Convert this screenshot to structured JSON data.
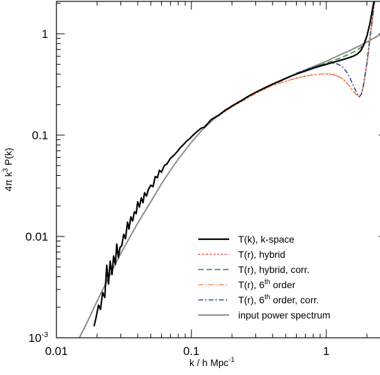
{
  "chart_data": {
    "type": "line",
    "xlabel": "k / h Mpc",
    "xlabel_sup": "-1",
    "ylabel": "4π k",
    "ylabel_sup": "3",
    "ylabel_tail": " P(k)",
    "xscale": "log",
    "yscale": "log",
    "xlim": [
      0.01,
      2.5
    ],
    "ylim": [
      0.001,
      2.3
    ],
    "grid": false,
    "legend_position": "bottom-right",
    "x_ticks": [
      {
        "value": 0.01,
        "label": "0.01"
      },
      {
        "value": 0.1,
        "label": "0.1"
      },
      {
        "value": 1,
        "label": "1"
      }
    ],
    "y_ticks": [
      {
        "value": 0.001,
        "label": "10",
        "sup": "-3"
      },
      {
        "value": 0.01,
        "label": "0.01"
      },
      {
        "value": 0.1,
        "label": "0.1"
      },
      {
        "value": 1,
        "label": "1"
      }
    ],
    "series": [
      {
        "name": "T(k), k-space",
        "color": "#000000",
        "dash": "",
        "width": 2.2,
        "points": [
          [
            0.019,
            0.0013
          ],
          [
            0.0197,
            0.0016
          ],
          [
            0.0205,
            0.0021
          ],
          [
            0.0212,
            0.0019
          ],
          [
            0.022,
            0.0028
          ],
          [
            0.0228,
            0.0025
          ],
          [
            0.0236,
            0.0052
          ],
          [
            0.0243,
            0.0034
          ],
          [
            0.025,
            0.0057
          ],
          [
            0.0258,
            0.0042
          ],
          [
            0.0265,
            0.0064
          ],
          [
            0.0273,
            0.0053
          ],
          [
            0.028,
            0.0084
          ],
          [
            0.0288,
            0.0062
          ],
          [
            0.0296,
            0.0078
          ],
          [
            0.0305,
            0.0081
          ],
          [
            0.0315,
            0.0105
          ],
          [
            0.0325,
            0.0095
          ],
          [
            0.0336,
            0.0138
          ],
          [
            0.0345,
            0.0118
          ],
          [
            0.0356,
            0.0156
          ],
          [
            0.0367,
            0.0142
          ],
          [
            0.0378,
            0.0175
          ],
          [
            0.039,
            0.0168
          ],
          [
            0.04,
            0.022
          ],
          [
            0.0412,
            0.0195
          ],
          [
            0.0425,
            0.024
          ],
          [
            0.0438,
            0.0215
          ],
          [
            0.045,
            0.027
          ],
          [
            0.0465,
            0.025
          ],
          [
            0.048,
            0.029
          ],
          [
            0.05,
            0.032
          ],
          [
            0.052,
            0.031
          ],
          [
            0.054,
            0.039
          ],
          [
            0.056,
            0.038
          ],
          [
            0.058,
            0.045
          ],
          [
            0.06,
            0.043
          ],
          [
            0.063,
            0.05
          ],
          [
            0.066,
            0.052
          ],
          [
            0.07,
            0.059
          ],
          [
            0.074,
            0.063
          ],
          [
            0.078,
            0.068
          ],
          [
            0.082,
            0.074
          ],
          [
            0.087,
            0.08
          ],
          [
            0.092,
            0.087
          ],
          [
            0.097,
            0.092
          ],
          [
            0.103,
            0.1
          ],
          [
            0.11,
            0.108
          ],
          [
            0.118,
            0.117
          ],
          [
            0.125,
            0.12
          ],
          [
            0.132,
            0.13
          ],
          [
            0.14,
            0.142
          ],
          [
            0.15,
            0.15
          ],
          [
            0.16,
            0.158
          ],
          [
            0.17,
            0.168
          ],
          [
            0.18,
            0.178
          ],
          [
            0.19,
            0.185
          ],
          [
            0.2,
            0.194
          ],
          [
            0.22,
            0.208
          ],
          [
            0.24,
            0.222
          ],
          [
            0.26,
            0.238
          ],
          [
            0.28,
            0.252
          ],
          [
            0.3,
            0.265
          ],
          [
            0.33,
            0.282
          ],
          [
            0.36,
            0.298
          ],
          [
            0.4,
            0.318
          ],
          [
            0.45,
            0.34
          ],
          [
            0.5,
            0.362
          ],
          [
            0.55,
            0.382
          ],
          [
            0.6,
            0.4
          ],
          [
            0.7,
            0.43
          ],
          [
            0.8,
            0.458
          ],
          [
            0.9,
            0.48
          ],
          [
            1.0,
            0.5
          ],
          [
            1.1,
            0.518
          ],
          [
            1.2,
            0.535
          ],
          [
            1.3,
            0.552
          ],
          [
            1.4,
            0.568
          ],
          [
            1.5,
            0.585
          ],
          [
            1.6,
            0.605
          ],
          [
            1.7,
            0.632
          ],
          [
            1.8,
            0.68
          ],
          [
            1.9,
            0.78
          ],
          [
            2.0,
            0.95
          ],
          [
            2.1,
            1.25
          ],
          [
            2.2,
            1.75
          ],
          [
            2.3,
            2.4
          ]
        ]
      },
      {
        "name": "T(r), hybrid",
        "color": "#e8504c",
        "dash": "3,2.5",
        "width": 1.6,
        "points": [
          [
            0.15,
            0.146
          ],
          [
            0.2,
            0.19
          ],
          [
            0.25,
            0.225
          ],
          [
            0.3,
            0.258
          ],
          [
            0.35,
            0.285
          ],
          [
            0.4,
            0.31
          ],
          [
            0.5,
            0.34
          ],
          [
            0.6,
            0.365
          ],
          [
            0.7,
            0.382
          ],
          [
            0.8,
            0.394
          ],
          [
            0.9,
            0.4
          ],
          [
            1.0,
            0.402
          ],
          [
            1.1,
            0.398
          ],
          [
            1.2,
            0.385
          ],
          [
            1.3,
            0.364
          ],
          [
            1.4,
            0.335
          ],
          [
            1.5,
            0.3
          ],
          [
            1.6,
            0.268
          ],
          [
            1.7,
            0.245
          ],
          [
            1.76,
            0.238
          ],
          [
            1.82,
            0.252
          ],
          [
            1.9,
            0.32
          ],
          [
            2.0,
            0.5
          ],
          [
            2.1,
            0.85
          ],
          [
            2.2,
            1.4
          ],
          [
            2.3,
            2.3
          ]
        ]
      },
      {
        "name": "T(r), hybrid, corr.",
        "color": "#2a8a2a",
        "dash": "8,4",
        "width": 1.6,
        "points": [
          [
            0.6,
            0.405
          ],
          [
            0.7,
            0.435
          ],
          [
            0.8,
            0.465
          ],
          [
            0.9,
            0.49
          ],
          [
            1.0,
            0.515
          ],
          [
            1.1,
            0.537
          ],
          [
            1.2,
            0.56
          ],
          [
            1.3,
            0.585
          ],
          [
            1.4,
            0.61
          ],
          [
            1.5,
            0.638
          ],
          [
            1.6,
            0.662
          ],
          [
            1.7,
            0.695
          ],
          [
            1.8,
            0.73
          ],
          [
            1.9,
            0.8
          ],
          [
            2.0,
            0.96
          ],
          [
            2.1,
            1.25
          ],
          [
            2.2,
            1.75
          ],
          [
            2.3,
            2.4
          ]
        ]
      },
      {
        "name": "T(r), 6",
        "name_sup": "th",
        "name_tail": " order",
        "color": "#f08a4b",
        "dash": "7,3,2,3",
        "width": 1.6,
        "points": [
          [
            0.15,
            0.148
          ],
          [
            0.2,
            0.19
          ],
          [
            0.25,
            0.226
          ],
          [
            0.3,
            0.258
          ],
          [
            0.35,
            0.286
          ],
          [
            0.4,
            0.31
          ],
          [
            0.5,
            0.341
          ],
          [
            0.6,
            0.365
          ],
          [
            0.7,
            0.382
          ],
          [
            0.8,
            0.394
          ],
          [
            0.9,
            0.4
          ],
          [
            1.0,
            0.402
          ],
          [
            1.1,
            0.398
          ],
          [
            1.2,
            0.385
          ],
          [
            1.3,
            0.364
          ],
          [
            1.4,
            0.335
          ],
          [
            1.5,
            0.3
          ],
          [
            1.6,
            0.268
          ],
          [
            1.7,
            0.245
          ],
          [
            1.76,
            0.238
          ],
          [
            1.82,
            0.252
          ],
          [
            1.9,
            0.32
          ],
          [
            2.0,
            0.5
          ],
          [
            2.1,
            0.85
          ],
          [
            2.2,
            1.4
          ],
          [
            2.3,
            2.3
          ]
        ]
      },
      {
        "name": "T(r), 6",
        "name_sup": "th",
        "name_tail": " order, corr.",
        "color": "#2c4a8c",
        "dash": "7,3,2,3",
        "width": 1.6,
        "points": [
          [
            0.6,
            0.408
          ],
          [
            0.7,
            0.44
          ],
          [
            0.8,
            0.468
          ],
          [
            0.9,
            0.49
          ],
          [
            1.0,
            0.505
          ],
          [
            1.1,
            0.512
          ],
          [
            1.2,
            0.505
          ],
          [
            1.3,
            0.48
          ],
          [
            1.4,
            0.43
          ],
          [
            1.5,
            0.365
          ],
          [
            1.6,
            0.3
          ],
          [
            1.7,
            0.255
          ],
          [
            1.76,
            0.24
          ],
          [
            1.82,
            0.255
          ],
          [
            1.9,
            0.33
          ],
          [
            2.0,
            0.52
          ],
          [
            2.1,
            0.9
          ],
          [
            2.2,
            1.45
          ],
          [
            2.3,
            2.3
          ]
        ]
      },
      {
        "name": "input power spectrum",
        "color": "#8c8c8c",
        "dash": "",
        "width": 2.0,
        "points": [
          [
            0.0145,
            0.00095
          ],
          [
            0.017,
            0.00145
          ],
          [
            0.02,
            0.0023
          ],
          [
            0.025,
            0.0042
          ],
          [
            0.03,
            0.0068
          ],
          [
            0.04,
            0.0135
          ],
          [
            0.05,
            0.022
          ],
          [
            0.06,
            0.033
          ],
          [
            0.07,
            0.045
          ],
          [
            0.08,
            0.058
          ],
          [
            0.1,
            0.085
          ],
          [
            0.12,
            0.112
          ],
          [
            0.15,
            0.148
          ],
          [
            0.2,
            0.195
          ],
          [
            0.25,
            0.232
          ],
          [
            0.3,
            0.265
          ],
          [
            0.4,
            0.32
          ],
          [
            0.5,
            0.365
          ],
          [
            0.6,
            0.405
          ],
          [
            0.7,
            0.44
          ],
          [
            0.8,
            0.475
          ],
          [
            1.0,
            0.535
          ],
          [
            1.2,
            0.6
          ],
          [
            1.5,
            0.685
          ],
          [
            1.8,
            0.77
          ],
          [
            2.1,
            0.86
          ],
          [
            2.5,
            0.98
          ],
          [
            3.0,
            1.12
          ]
        ]
      }
    ]
  }
}
